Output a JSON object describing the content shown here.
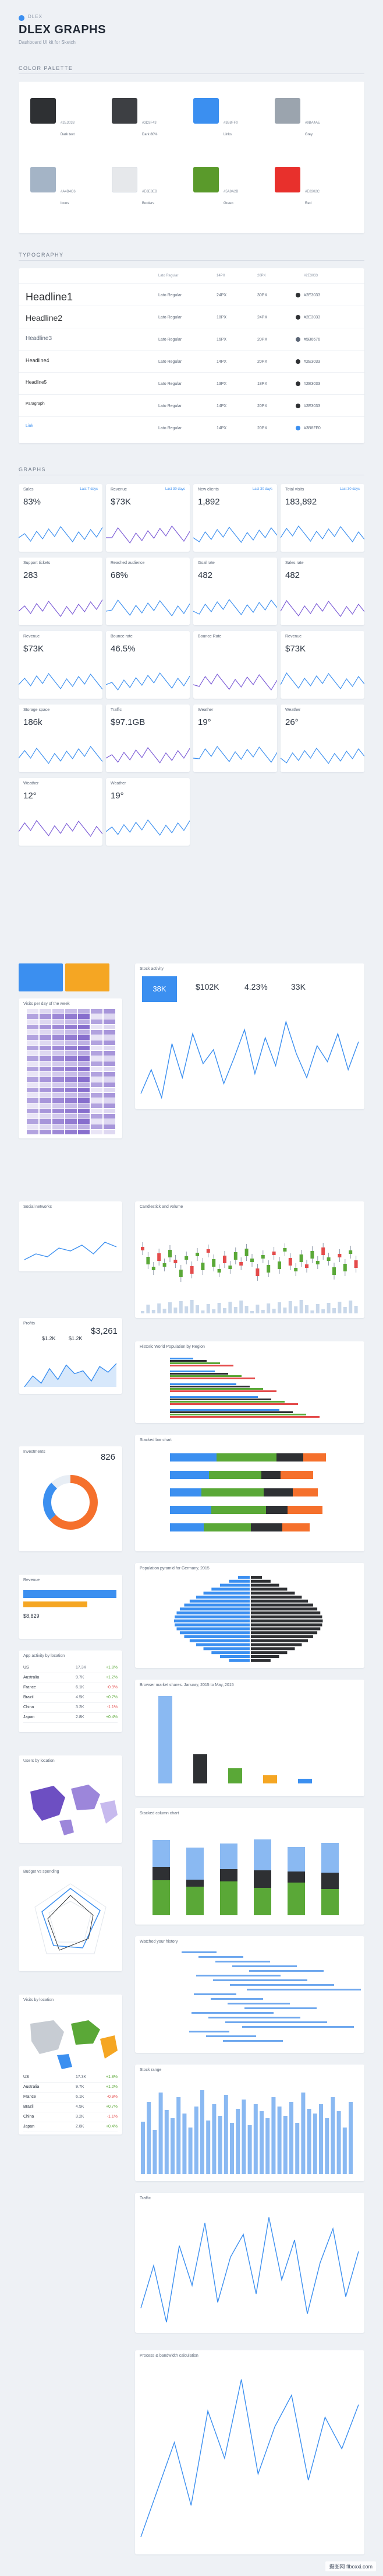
{
  "header": {
    "small": "DLEX",
    "title": "DLEX GRAPHS",
    "subtitle": "Dashboard UI kit for Sketch"
  },
  "sections": {
    "colors": "COLOR PALETTE",
    "typography": "TYPOGRAPHY",
    "graphs": "GRAPHS"
  },
  "palette": [
    {
      "hex": "#2e3033",
      "name": "Dark text",
      "code": "#2E3033"
    },
    {
      "hex": "#3d3f43",
      "name": "Dark 80%",
      "code": "#3D3F43"
    },
    {
      "hex": "#3b8ff0",
      "name": "Links",
      "code": "#3B8FF0"
    },
    {
      "hex": "#9ba4ae",
      "name": "Grey",
      "code": "#9BA4AE"
    },
    {
      "hex": "#a4b4c6",
      "name": "Icons",
      "code": "#A4B4C6"
    },
    {
      "hex": "#e6e8eb",
      "name": "Borders",
      "code": "#E6E8EB"
    },
    {
      "hex": "#5a9a2b",
      "name": "Green",
      "code": "#5A9A2B"
    },
    {
      "hex": "#e8302c",
      "name": "Red",
      "code": "#E8302C"
    }
  ],
  "typo": {
    "headers": [
      "Lato Regular",
      "14PX",
      "20PX",
      "#2E3033"
    ],
    "rows": [
      {
        "label": "Headline1",
        "font": "Lato Regular",
        "size": "24PX",
        "lh": "30PX",
        "color": "#2E3033",
        "css_size": "18px",
        "dot": "#2e3033"
      },
      {
        "label": "Headline2",
        "font": "Lato Regular",
        "size": "18PX",
        "lh": "24PX",
        "color": "#2E3033",
        "css_size": "14px",
        "dot": "#2e3033"
      },
      {
        "label": "Headline3",
        "font": "Lato Regular",
        "size": "16PX",
        "lh": "20PX",
        "color": "#5B6676",
        "css_size": "10px",
        "dot": "#5b6676"
      },
      {
        "label": "Headline4",
        "font": "Lato Regular",
        "size": "14PX",
        "lh": "20PX",
        "color": "#2E3033",
        "css_size": "9px",
        "dot": "#2e3033"
      },
      {
        "label": "Headline5",
        "font": "Lato Regular",
        "size": "13PX",
        "lh": "18PX",
        "color": "#2E3033",
        "css_size": "8px",
        "dot": "#2e3033"
      },
      {
        "label": "Paragraph",
        "font": "Lato Regular",
        "size": "14PX",
        "lh": "20PX",
        "color": "#2E3033",
        "css_size": "7px",
        "dot": "#2e3033"
      },
      {
        "label": "Link",
        "font": "Lato Regular",
        "size": "14PX",
        "lh": "20PX",
        "color": "#3B8FF0",
        "css_size": "7px",
        "dot": "#3b8ff0"
      }
    ]
  },
  "mini": [
    {
      "title": "Sales",
      "link": "Last 7 days",
      "value": "83%"
    },
    {
      "title": "Revenue",
      "link": "Last 30 days",
      "value": "$73K"
    },
    {
      "title": "New clients",
      "link": "Last 30 days",
      "value": "1,892"
    },
    {
      "title": "Total visits",
      "link": "Last 30 days",
      "value": "183,892"
    },
    {
      "title": "Support tickets",
      "link": "",
      "value": "283"
    },
    {
      "title": "Reached audience",
      "link": "",
      "value": "68%"
    },
    {
      "title": "Goal rate",
      "link": "",
      "value": "482"
    },
    {
      "title": "Sales rate",
      "link": "",
      "value": "482"
    },
    {
      "title": "Revenue",
      "link": "",
      "value": "$73K"
    },
    {
      "title": "Bounce rate",
      "link": "",
      "value": "46.5%"
    },
    {
      "title": "Bounce Rate",
      "link": "",
      "value": ""
    },
    {
      "title": "Revenue",
      "link": "",
      "value": "$73K"
    },
    {
      "title": "Storage space",
      "link": "",
      "value": "186k"
    },
    {
      "title": "Traffic",
      "link": "",
      "value": "$97.1GB"
    },
    {
      "title": "Weather",
      "link": "",
      "value": "19°"
    },
    {
      "title": "Weather",
      "link": "",
      "value": "26°"
    },
    {
      "title": "Weather",
      "link": "",
      "value": "12°"
    },
    {
      "title": "Weather",
      "link": "",
      "value": "19°"
    }
  ],
  "labels": {
    "stock": "Stock activity",
    "stock_vals": [
      "38K",
      "$102K",
      "4.23%",
      "33K"
    ],
    "candle": "Candlestick and volume",
    "region": "Historic World Population by Region",
    "stacked": "Stacked bar chart",
    "pyramid": "Population pyramid for Germany, 2015",
    "browser": "Browser market shares. January, 2015 to May, 2015",
    "stacked2": "Stacked column chart",
    "history": "Watched your history",
    "stockrange": "Stock range",
    "traffic": "Traffic",
    "process": "Process & bandwidth calculation",
    "profits": "Profits",
    "profit_vals": [
      "$1.2K",
      "$1.2K",
      "$3,261"
    ],
    "investments": "Investments",
    "invest_val": "826",
    "revenue": "Revenue",
    "revenue_val": "$8,829",
    "appact": "App activity by location",
    "users": "Users by location",
    "budget": "Budget vs spending",
    "visits": "Visits by location",
    "social": "Social networks",
    "visits_heat": "Visits per day of the week",
    "footer": "摄图网 flboxxi.com"
  },
  "countries": [
    {
      "name": "US",
      "a": "17.3K",
      "b": "+1.8%"
    },
    {
      "name": "Australia",
      "a": "9.7K",
      "b": "+1.2%"
    },
    {
      "name": "France",
      "a": "6.1K",
      "b": "-0.9%"
    },
    {
      "name": "Brazil",
      "a": "4.5K",
      "b": "+0.7%"
    },
    {
      "name": "China",
      "a": "3.2K",
      "b": "-1.1%"
    },
    {
      "name": "Japan",
      "a": "2.8K",
      "b": "+0.4%"
    }
  ],
  "chart_data": {
    "type": "line",
    "stock_line": [
      30,
      42,
      28,
      55,
      38,
      60,
      45,
      52,
      35,
      48,
      62,
      40,
      58,
      44,
      66,
      50,
      38,
      54,
      46,
      60,
      42,
      56
    ],
    "traffic_line": [
      40,
      55,
      35,
      62,
      48,
      70,
      42,
      58,
      66,
      45,
      72,
      50,
      64,
      38,
      56,
      68,
      44,
      60
    ],
    "process_line": [
      20,
      35,
      50,
      30,
      60,
      45,
      70,
      40,
      55,
      65,
      38,
      58,
      48,
      62
    ],
    "stockrange_bars": [
      45,
      62,
      38,
      70,
      55,
      48,
      66,
      52,
      40,
      58,
      72,
      46,
      60,
      50,
      68,
      44,
      56,
      64,
      42,
      60,
      54,
      48,
      66,
      58,
      50,
      62,
      44,
      70,
      56,
      52,
      60,
      48,
      66,
      54,
      40,
      62
    ]
  }
}
